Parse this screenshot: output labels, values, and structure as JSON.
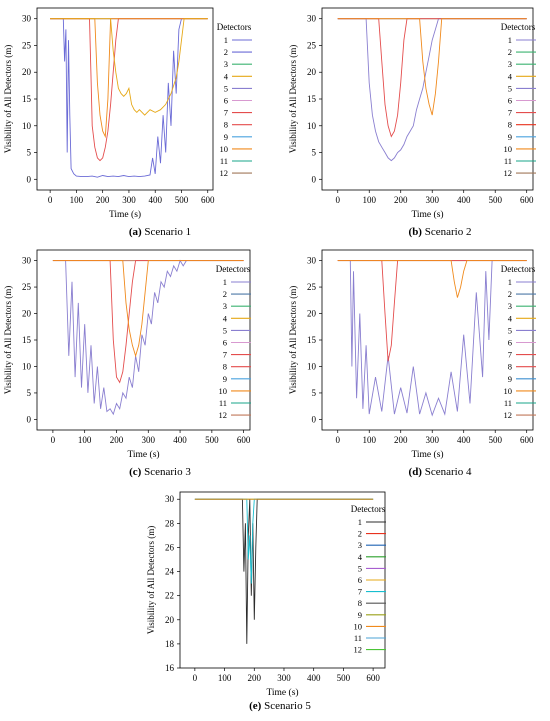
{
  "detector_colors": [
    "#2b2b2b",
    "#d62728",
    "#1f63b4",
    "#2ca02c",
    "#7b3fa0",
    "#bcbd22",
    "#17becf",
    "#7f7f7f",
    "#9aa019",
    "#ff7f0e",
    "#4ba3d6",
    "#4cc437"
  ],
  "panel_colors": {
    "s1": [
      "#6b6bd6",
      "#6b6bd6",
      "#3cb371",
      "#e6a817",
      "#8a7fd0",
      "#d899d0",
      "#e44d4d",
      "#e44d4d",
      "#4aa3df",
      "#f08a1c",
      "#17a589",
      "#a0785a"
    ],
    "s2": [
      "#8a7fd0",
      "#3cb371",
      "#3cb371",
      "#e6a817",
      "#8a7fd0",
      "#d899d0",
      "#e44d4d",
      "#e8321e",
      "#4aa3df",
      "#f08a1c",
      "#17a589",
      "#a0785a"
    ],
    "s3": [
      "#8a7fd0",
      "#4e79a7",
      "#3cb371",
      "#e6a817",
      "#8a7fd0",
      "#d899d0",
      "#e44d4d",
      "#e44d4d",
      "#4aa3df",
      "#f08a1c",
      "#17a589",
      "#c0785a"
    ],
    "s4": [
      "#8a7fd0",
      "#4e79a7",
      "#3cb371",
      "#e6a817",
      "#8a7fd0",
      "#d899d0",
      "#e44d4d",
      "#e44d4d",
      "#3d8fd1",
      "#f08a1c",
      "#17a589",
      "#c0785a"
    ],
    "s5": [
      "#2b2b2b",
      "#e8321e",
      "#1f63b4",
      "#2ca02c",
      "#a85fd0",
      "#e6a817",
      "#17becf",
      "#555555",
      "#9aa019",
      "#f08a1c",
      "#4ba3d6",
      "#4cc437"
    ]
  },
  "chart_data": [
    {
      "type": "line",
      "caption_label": "(a)",
      "caption_text": "Scenario 1",
      "xlabel": "Time (s)",
      "ylabel": "Visibility of All Detectors (m)",
      "xlim": [
        -50,
        620
      ],
      "ylim": [
        -2,
        32
      ],
      "xticks": [
        0,
        100,
        200,
        300,
        400,
        500,
        600
      ],
      "yticks": [
        0,
        5,
        10,
        15,
        20,
        25,
        30
      ],
      "legend_title": "Detectors",
      "legend_entries": [
        "1",
        "2",
        "3",
        "4",
        "5",
        "6",
        "7",
        "8",
        "9",
        "10",
        "11",
        "12"
      ],
      "series": [
        {
          "x": [
            0,
            50,
            55,
            60,
            65,
            70,
            75,
            80,
            90,
            100,
            120,
            140,
            160,
            180,
            200,
            220,
            240,
            260,
            280,
            300,
            320,
            340,
            360,
            380,
            390,
            400,
            410,
            420,
            430,
            440,
            450,
            460,
            470,
            480,
            490,
            500
          ],
          "y": [
            30,
            30,
            22,
            28,
            5,
            26,
            12,
            2,
            1,
            0.6,
            0.5,
            0.5,
            0.6,
            0.4,
            0.7,
            0.5,
            0.6,
            0.5,
            0.7,
            0.5,
            0.6,
            0.5,
            0.6,
            0.8,
            4,
            1,
            8,
            3,
            12,
            5,
            18,
            10,
            24,
            16,
            28,
            30
          ]
        },
        {
          "x": [
            0,
            150,
            155,
            160,
            170,
            180,
            190,
            200,
            210,
            220,
            230,
            240,
            250,
            260,
            270,
            300,
            600
          ],
          "y": [
            30,
            30,
            20,
            10,
            6,
            4,
            3.5,
            4,
            6,
            9,
            14,
            20,
            26,
            30,
            30,
            30,
            30
          ]
        },
        {
          "x": [
            0,
            170,
            180,
            190,
            200,
            210,
            220,
            230,
            600
          ],
          "y": [
            30,
            30,
            18,
            12,
            9,
            8,
            15,
            30,
            30
          ]
        },
        {
          "x": [
            0,
            230,
            240,
            250,
            260,
            270,
            280,
            290,
            300,
            310,
            320,
            330,
            340,
            360,
            380,
            400,
            420,
            440,
            460,
            480,
            490,
            500,
            510,
            600
          ],
          "y": [
            30,
            30,
            24,
            20,
            17,
            16,
            15.5,
            16,
            17,
            14,
            13,
            12.5,
            13,
            12,
            13,
            12.5,
            13,
            14,
            16,
            19,
            22,
            26,
            30,
            30
          ]
        }
      ]
    },
    {
      "type": "line",
      "caption_label": "(b)",
      "caption_text": "Scenario 2",
      "xlabel": "Time (s)",
      "ylabel": "Visibility of All Detectors (m)",
      "xlim": [
        -50,
        620
      ],
      "ylim": [
        -2,
        32
      ],
      "xticks": [
        0,
        100,
        200,
        300,
        400,
        500,
        600
      ],
      "yticks": [
        0,
        5,
        10,
        15,
        20,
        25,
        30
      ],
      "legend_title": "Detectors",
      "legend_entries": [
        "1",
        "2",
        "3",
        "4",
        "5",
        "6",
        "7",
        "8",
        "9",
        "10",
        "11",
        "12"
      ],
      "series": [
        {
          "x": [
            0,
            90,
            100,
            110,
            120,
            130,
            140,
            150,
            160,
            170,
            180,
            190,
            200,
            210,
            220,
            230,
            240,
            250,
            260,
            270,
            280,
            290,
            300,
            310,
            320,
            330,
            340,
            350,
            360,
            600
          ],
          "y": [
            30,
            30,
            18,
            12,
            9,
            7,
            6,
            5,
            4,
            3.5,
            4,
            5,
            5.5,
            6.5,
            8,
            9,
            10,
            13,
            15,
            17,
            20,
            23,
            26,
            28,
            30,
            30,
            30,
            30,
            30,
            30
          ]
        },
        {
          "x": [
            0,
            130,
            140,
            150,
            160,
            170,
            180,
            190,
            200,
            210,
            220,
            600
          ],
          "y": [
            30,
            30,
            22,
            14,
            10,
            8,
            9,
            12,
            18,
            26,
            30,
            30
          ]
        },
        {
          "x": [
            0,
            260,
            270,
            280,
            290,
            300,
            310,
            320,
            330,
            600
          ],
          "y": [
            30,
            30,
            22,
            17,
            14,
            12,
            16,
            22,
            30,
            30
          ]
        }
      ]
    },
    {
      "type": "line",
      "caption_label": "(c)",
      "caption_text": "Scenario 3",
      "xlabel": "Time (s)",
      "ylabel": "Visibility of All Detectors (m)",
      "xlim": [
        -50,
        620
      ],
      "ylim": [
        -2,
        32
      ],
      "xticks": [
        0,
        100,
        200,
        300,
        400,
        500,
        600
      ],
      "yticks": [
        0,
        5,
        10,
        15,
        20,
        25,
        30
      ],
      "legend_title": "Detectors",
      "legend_entries": [
        "1",
        "2",
        "3",
        "4",
        "5",
        "6",
        "7",
        "8",
        "9",
        "10",
        "11",
        "12"
      ],
      "series": [
        {
          "x": [
            0,
            40,
            50,
            60,
            70,
            80,
            90,
            100,
            110,
            120,
            130,
            140,
            150,
            160,
            170,
            180,
            190,
            200,
            210,
            220,
            230,
            240,
            250,
            260,
            270,
            280,
            290,
            300,
            310,
            320,
            330,
            340,
            350,
            360,
            370,
            380,
            390,
            400,
            410,
            420,
            600
          ],
          "y": [
            30,
            30,
            12,
            26,
            8,
            22,
            6,
            18,
            5,
            14,
            3,
            10,
            2,
            6,
            1.5,
            2,
            1,
            3,
            2,
            5,
            4,
            8,
            6,
            12,
            9,
            16,
            14,
            20,
            18,
            24,
            22,
            26,
            25,
            28,
            27,
            29,
            28,
            30,
            29,
            30,
            30
          ]
        },
        {
          "x": [
            0,
            180,
            190,
            200,
            210,
            220,
            230,
            240,
            250,
            260,
            270,
            600
          ],
          "y": [
            30,
            30,
            15,
            8,
            7,
            9,
            14,
            20,
            26,
            30,
            30,
            30
          ]
        },
        {
          "x": [
            0,
            220,
            230,
            240,
            250,
            260,
            270,
            280,
            290,
            300,
            600
          ],
          "y": [
            30,
            30,
            22,
            17,
            14,
            12,
            14,
            18,
            24,
            30,
            30
          ]
        }
      ]
    },
    {
      "type": "line",
      "caption_label": "(d)",
      "caption_text": "Scenario 4",
      "xlabel": "Time (s)",
      "ylabel": "Visibility of All Detectors (m)",
      "xlim": [
        -50,
        620
      ],
      "ylim": [
        -2,
        32
      ],
      "xticks": [
        0,
        100,
        200,
        300,
        400,
        500,
        600
      ],
      "yticks": [
        0,
        5,
        10,
        15,
        20,
        25,
        30
      ],
      "legend_title": "Detectors",
      "legend_entries": [
        "1",
        "2",
        "3",
        "4",
        "5",
        "6",
        "7",
        "8",
        "9",
        "10",
        "11",
        "12"
      ],
      "series": [
        {
          "x": [
            0,
            40,
            45,
            50,
            60,
            70,
            80,
            90,
            100,
            120,
            140,
            160,
            180,
            200,
            220,
            240,
            260,
            280,
            300,
            320,
            340,
            360,
            380,
            400,
            420,
            440,
            460,
            470,
            480,
            490,
            600
          ],
          "y": [
            30,
            30,
            10,
            28,
            4,
            20,
            2,
            14,
            1,
            8,
            1.5,
            12,
            1,
            6,
            1.2,
            10,
            1,
            5,
            0.8,
            4,
            1,
            9,
            1.5,
            16,
            3,
            24,
            8,
            28,
            15,
            30,
            30
          ]
        },
        {
          "x": [
            0,
            140,
            150,
            160,
            170,
            180,
            190,
            200,
            210,
            600
          ],
          "y": [
            30,
            30,
            20,
            11,
            14,
            22,
            30,
            30,
            30,
            30
          ]
        },
        {
          "x": [
            0,
            360,
            370,
            380,
            390,
            400,
            410,
            600
          ],
          "y": [
            30,
            30,
            26,
            23,
            25,
            28,
            30,
            30
          ]
        }
      ]
    },
    {
      "type": "line",
      "caption_label": "(e)",
      "caption_text": "Scenario 5",
      "xlabel": "Time (s)",
      "ylabel": "Visibility of All Detectors (m)",
      "xlim": [
        -50,
        640
      ],
      "ylim": [
        16,
        30.6
      ],
      "xticks": [
        0,
        100,
        200,
        300,
        400,
        500,
        600
      ],
      "yticks": [
        16,
        18,
        20,
        22,
        24,
        26,
        28,
        30
      ],
      "legend_title": "Detectors",
      "legend_entries": [
        "1",
        "2",
        "3",
        "4",
        "5",
        "6",
        "7",
        "8",
        "9",
        "10",
        "11",
        "12"
      ],
      "series": [
        {
          "x": [
            0,
            160,
            165,
            170,
            175,
            180,
            185,
            190,
            195,
            200,
            205,
            210,
            215,
            600
          ],
          "y": [
            30,
            30,
            24,
            28,
            18,
            27,
            30,
            22,
            28,
            20,
            26,
            30,
            30,
            30
          ]
        },
        {
          "x": [
            0,
            175,
            180,
            185,
            190,
            195,
            200,
            210,
            600
          ],
          "y": [
            30,
            30,
            25,
            27,
            23,
            28,
            30,
            30,
            30
          ]
        },
        {
          "x": [
            0,
            600
          ],
          "y": [
            30,
            30
          ]
        }
      ]
    }
  ]
}
